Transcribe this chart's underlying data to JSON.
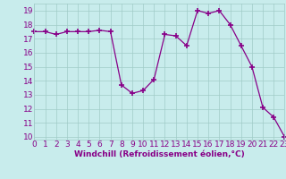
{
  "x": [
    0,
    1,
    2,
    3,
    4,
    5,
    6,
    7,
    8,
    9,
    10,
    11,
    12,
    13,
    14,
    15,
    16,
    17,
    18,
    19,
    20,
    21,
    22,
    23
  ],
  "y": [
    17.5,
    17.5,
    17.3,
    17.5,
    17.5,
    17.5,
    17.6,
    17.5,
    13.7,
    13.1,
    13.3,
    14.1,
    17.3,
    17.2,
    16.5,
    19.0,
    18.8,
    19.0,
    18.0,
    16.5,
    15.0,
    12.1,
    11.4,
    10.0
  ],
  "line_color": "#880088",
  "marker": "P",
  "marker_size": 3,
  "xlabel": "Windchill (Refroidissement éolien,°C)",
  "xlim": [
    0,
    23
  ],
  "ylim": [
    9.8,
    19.5
  ],
  "yticks": [
    10,
    11,
    12,
    13,
    14,
    15,
    16,
    17,
    18,
    19
  ],
  "xticks": [
    0,
    1,
    2,
    3,
    4,
    5,
    6,
    7,
    8,
    9,
    10,
    11,
    12,
    13,
    14,
    15,
    16,
    17,
    18,
    19,
    20,
    21,
    22,
    23
  ],
  "background_color": "#c8ecec",
  "grid_color": "#a0ccc8",
  "xlabel_color": "#880088",
  "tick_color": "#880088",
  "label_fontsize": 6.5,
  "tick_fontsize": 6.5
}
